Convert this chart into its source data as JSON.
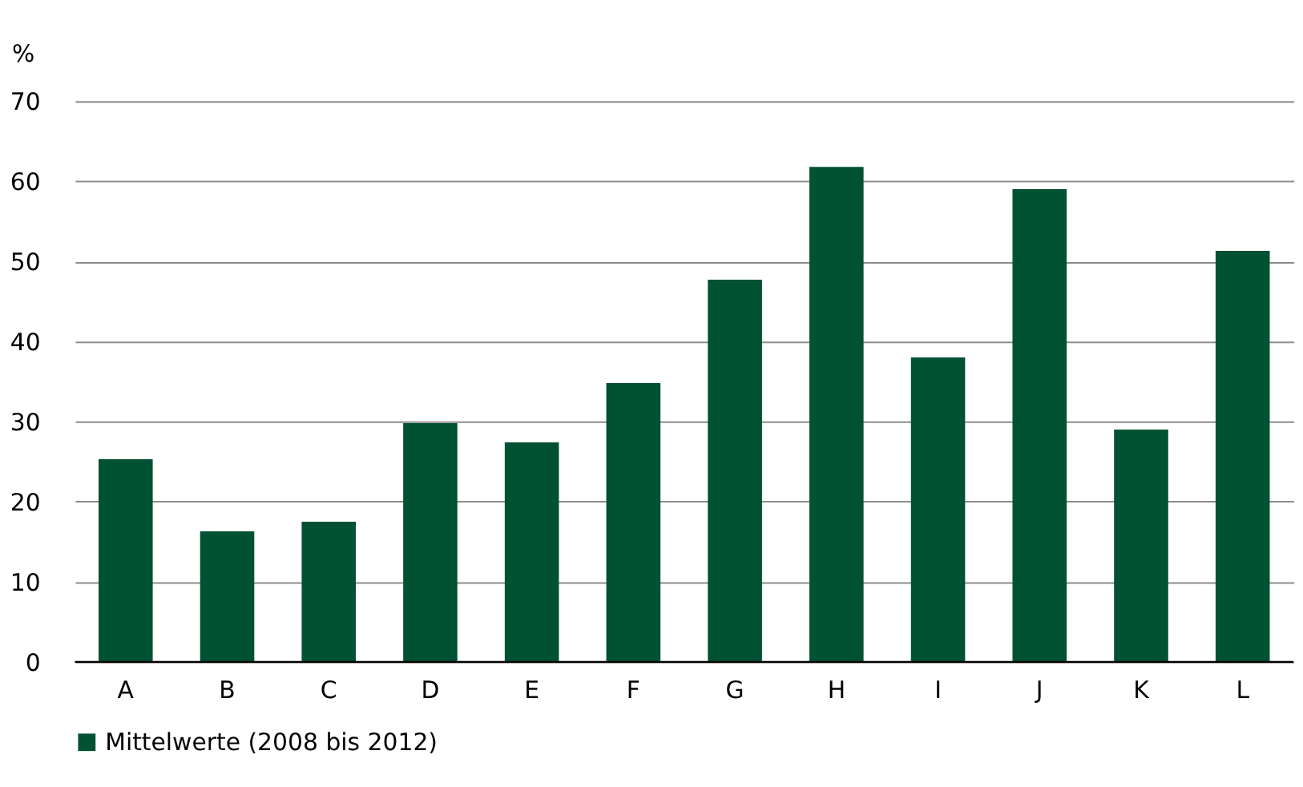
{
  "chart_data": {
    "type": "bar",
    "ylabel": "%",
    "categories": [
      "A",
      "B",
      "C",
      "D",
      "E",
      "F",
      "G",
      "H",
      "I",
      "J",
      "K",
      "L"
    ],
    "series": [
      {
        "name": "Mittelwerte (2008 bis 2012)",
        "color": "#005232",
        "values": [
          25.3,
          16.3,
          17.5,
          29.8,
          27.4,
          34.8,
          47.7,
          61.8,
          38.0,
          59.0,
          29.0,
          51.3
        ]
      }
    ],
    "ylim": [
      0,
      70
    ],
    "yticks": [
      0,
      10,
      20,
      30,
      40,
      50,
      60,
      70
    ],
    "grid": "y",
    "legend": "bottom"
  }
}
